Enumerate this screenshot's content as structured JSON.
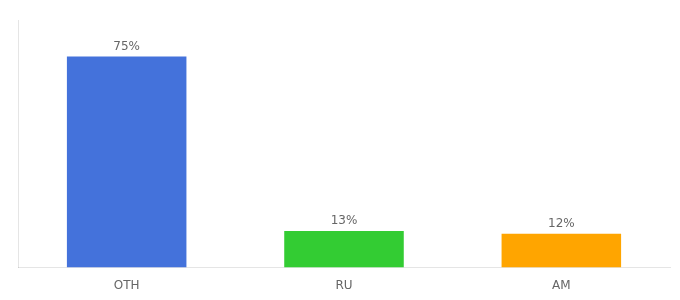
{
  "chart_data": {
    "type": "bar",
    "categories": [
      "OTH",
      "RU",
      "AM"
    ],
    "values": [
      75,
      13,
      12
    ],
    "value_labels": [
      "75%",
      "13%",
      "12%"
    ],
    "colors": [
      "#4472DB",
      "#33CC33",
      "#FFA500"
    ],
    "ylim": [
      0,
      88
    ],
    "grid": false,
    "tick_labels": "x",
    "data_labels": true
  }
}
